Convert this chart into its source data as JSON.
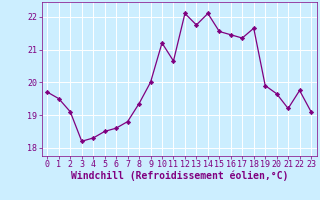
{
  "x": [
    0,
    1,
    2,
    3,
    4,
    5,
    6,
    7,
    8,
    9,
    10,
    11,
    12,
    13,
    14,
    15,
    16,
    17,
    18,
    19,
    20,
    21,
    22,
    23
  ],
  "y": [
    19.7,
    19.5,
    19.1,
    18.2,
    18.3,
    18.5,
    18.6,
    18.8,
    19.35,
    20.0,
    21.2,
    20.65,
    22.1,
    21.75,
    22.1,
    21.55,
    21.45,
    21.35,
    21.65,
    19.9,
    19.65,
    19.2,
    19.75,
    19.1
  ],
  "line_color": "#800080",
  "marker": "D",
  "marker_size": 2.2,
  "bg_color": "#cceeff",
  "grid_color": "#ffffff",
  "xlabel": "Windchill (Refroidissement éolien,°C)",
  "xlabel_color": "#800080",
  "ylim": [
    17.75,
    22.45
  ],
  "xlim": [
    -0.5,
    23.5
  ],
  "yticks": [
    18,
    19,
    20,
    21,
    22
  ],
  "xticks": [
    0,
    1,
    2,
    3,
    4,
    5,
    6,
    7,
    8,
    9,
    10,
    11,
    12,
    13,
    14,
    15,
    16,
    17,
    18,
    19,
    20,
    21,
    22,
    23
  ],
  "tick_color": "#800080",
  "tick_fontsize": 6.0,
  "xlabel_fontsize": 7.0,
  "line_width": 0.9
}
